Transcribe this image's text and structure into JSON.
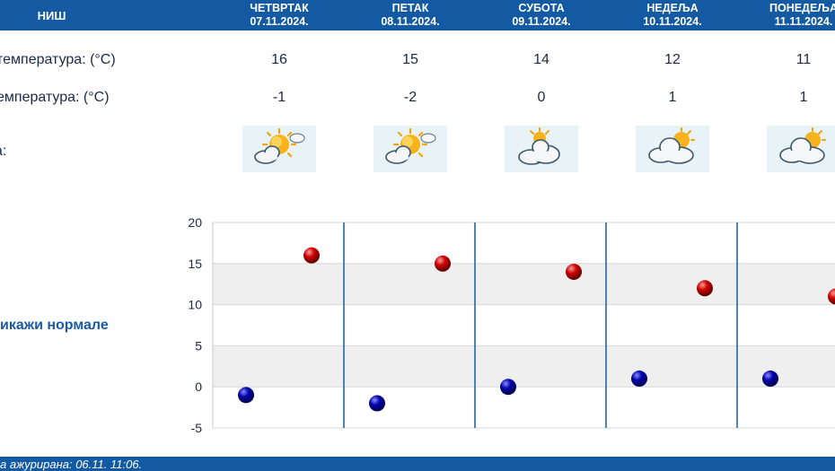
{
  "header": {
    "city": "НИШ",
    "days": [
      {
        "name": "ЧЕТВРТАК",
        "date": "07.11.2024."
      },
      {
        "name": "ПЕТАК",
        "date": "08.11.2024."
      },
      {
        "name": "СУБОТА",
        "date": "09.11.2024."
      },
      {
        "name": "НЕДЕЉА",
        "date": "10.11.2024."
      },
      {
        "name": "ПОНЕДЕЉА",
        "date": "11.11.2024."
      }
    ]
  },
  "rows": {
    "max_label": "температура: (°C)",
    "min_label": "емпература: (°C)",
    "icon_label": "а:",
    "max": [
      "16",
      "15",
      "14",
      "12",
      "11"
    ],
    "min": [
      "-1",
      "-2",
      "0",
      "1",
      "1"
    ],
    "icons": [
      "sun-cloud-icon",
      "sun-cloud-icon",
      "cloud-sun-icon",
      "cloud-sun-icon",
      "cloud-sun-icon"
    ]
  },
  "links": {
    "show_normals": "икажи нормале"
  },
  "chart_data": {
    "type": "scatter",
    "categories": [
      "07.11.2024.",
      "08.11.2024.",
      "09.11.2024.",
      "10.11.2024.",
      "11.11.2024."
    ],
    "series": [
      {
        "values": [
          16,
          15,
          14,
          12,
          11
        ],
        "color": "#cc0000"
      },
      {
        "values": [
          -1,
          -2,
          0,
          1,
          1
        ],
        "color": "#0000aa"
      }
    ],
    "yticks": [
      "20",
      "15",
      "10",
      "5",
      "0",
      "-5"
    ],
    "ylim": [
      -5,
      20
    ],
    "grid": true
  },
  "footer": {
    "updated": "а ажурирана:  06.11. 11:06."
  },
  "colors": {
    "header": "#145aa3",
    "max_dot": "#cc0000",
    "min_dot": "#0000aa",
    "band": "#efefef"
  }
}
